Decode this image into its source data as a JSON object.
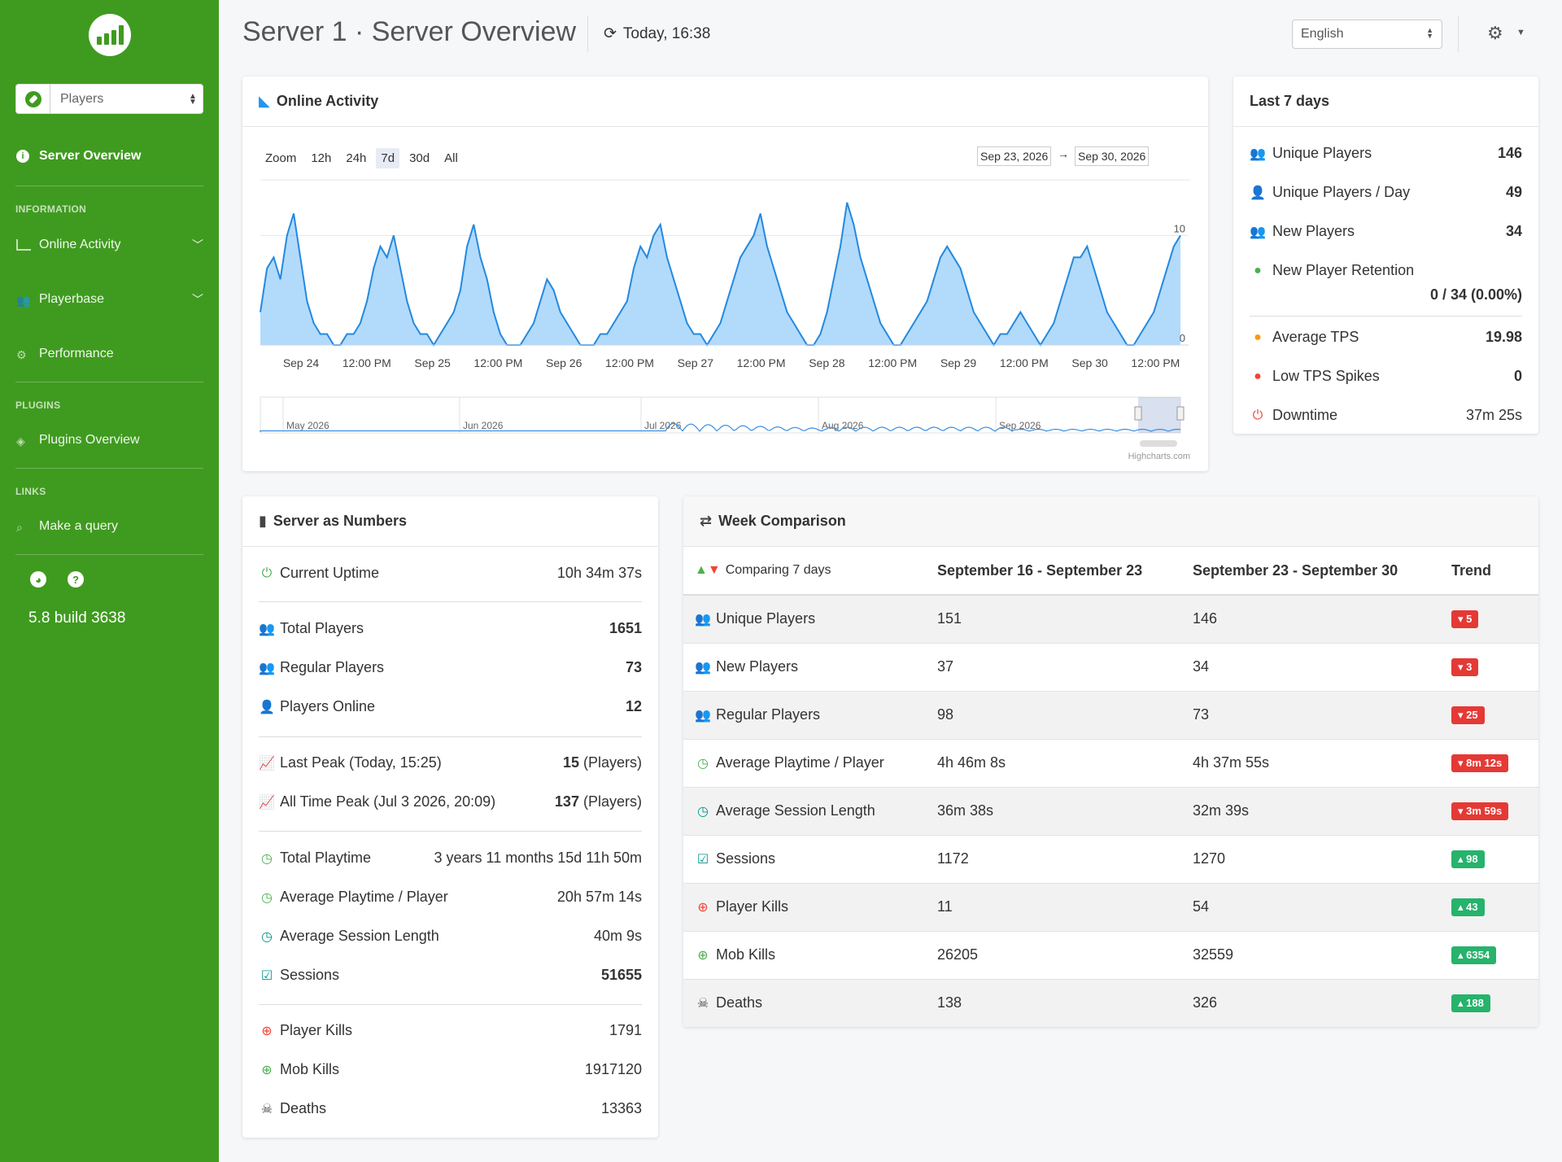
{
  "sidebar": {
    "selector": "Players",
    "active_item": "Server Overview",
    "sections": [
      {
        "label": "INFORMATION"
      },
      {
        "label": "PLUGINS"
      },
      {
        "label": "LINKS"
      }
    ],
    "items": {
      "online_activity": "Online Activity",
      "playerbase": "Playerbase",
      "performance": "Performance",
      "plugins_overview": "Plugins Overview",
      "make_query": "Make a query"
    },
    "version": "5.8 build 3638"
  },
  "header": {
    "title": "Server 1 · Server Overview",
    "time": "Today, 16:38",
    "language": "English"
  },
  "online_activity": {
    "title": "Online Activity",
    "zoom_label": "Zoom",
    "zoom_options": [
      "12h",
      "24h",
      "7d",
      "30d",
      "All"
    ],
    "zoom_selected": "7d",
    "range_from": "Sep 23, 2026",
    "range_to": "Sep 30, 2026",
    "range_arrow": "→",
    "credit": "Highcharts.com",
    "navigator_labels": [
      "May 2026",
      "Jun 2026",
      "Jul 2026",
      "Aug 2026",
      "Sep 2026"
    ]
  },
  "chart_data": {
    "type": "area",
    "x_ticks": [
      "Sep 24",
      "12:00 PM",
      "Sep 25",
      "12:00 PM",
      "Sep 26",
      "12:00 PM",
      "Sep 27",
      "12:00 PM",
      "Sep 28",
      "12:00 PM",
      "Sep 29",
      "12:00 PM",
      "Sep 30",
      "12:00 PM"
    ],
    "y_ticks": [
      0,
      10
    ],
    "ylim": [
      0,
      15
    ],
    "series": [
      {
        "values": [
          3,
          7,
          8,
          6,
          10,
          12,
          8,
          4,
          2,
          1,
          1,
          0,
          0,
          1,
          1,
          2,
          4,
          7,
          9,
          8,
          10,
          7,
          4,
          2,
          1,
          1,
          0,
          1,
          2,
          3,
          5,
          9,
          11,
          8,
          6,
          3,
          1,
          0,
          0,
          0,
          1,
          2,
          4,
          6,
          5,
          3,
          2,
          1,
          0,
          0,
          0,
          1,
          1,
          2,
          3,
          4,
          7,
          9,
          8,
          10,
          11,
          8,
          6,
          4,
          2,
          1,
          1,
          0,
          1,
          2,
          4,
          6,
          8,
          9,
          10,
          12,
          9,
          7,
          5,
          3,
          2,
          1,
          0,
          0,
          1,
          3,
          6,
          9,
          13,
          11,
          8,
          6,
          4,
          2,
          1,
          0,
          0,
          1,
          2,
          3,
          4,
          6,
          8,
          9,
          8,
          7,
          5,
          3,
          2,
          1,
          0,
          1,
          1,
          2,
          3,
          2,
          1,
          0,
          1,
          2,
          4,
          6,
          8,
          8,
          9,
          7,
          5,
          3,
          2,
          1,
          0,
          0,
          1,
          2,
          3,
          5,
          7,
          9,
          10
        ]
      }
    ]
  },
  "last7": {
    "title": "Last 7 days",
    "rows": [
      {
        "label": "Unique Players",
        "value": "146",
        "icon": "users-icon"
      },
      {
        "label": "Unique Players / Day",
        "value": "49",
        "icon": "user-icon"
      },
      {
        "label": "New Players",
        "value": "34",
        "icon": "users-new-icon"
      },
      {
        "label": "New Player Retention",
        "value": "0 / 34 (0.00%)",
        "icon": "retention-icon"
      },
      {
        "label": "Average TPS",
        "value": "19.98",
        "icon": "tps-icon"
      },
      {
        "label": "Low TPS Spikes",
        "value": "0",
        "icon": "alert-icon"
      },
      {
        "label": "Downtime",
        "value": "37m 25s",
        "icon": "power-icon"
      }
    ]
  },
  "numbers": {
    "title": "Server as Numbers",
    "current_uptime": {
      "label": "Current Uptime",
      "value": "10h 34m 37s"
    },
    "total_players": {
      "label": "Total Players",
      "value": "1651"
    },
    "regular_players": {
      "label": "Regular Players",
      "value": "73"
    },
    "players_online": {
      "label": "Players Online",
      "value": "12"
    },
    "last_peak": {
      "label": "Last Peak (Today, 15:25)",
      "value": "15",
      "unit": "(Players)"
    },
    "all_time_peak": {
      "label": "All Time Peak (Jul 3 2026, 20:09)",
      "value": "137",
      "unit": "(Players)"
    },
    "total_playtime": {
      "label": "Total Playtime",
      "value": "3 years 11 months 15d 11h 50m"
    },
    "avg_playtime": {
      "label": "Average Playtime / Player",
      "value": "20h 57m 14s"
    },
    "avg_session": {
      "label": "Average Session Length",
      "value": "40m 9s"
    },
    "sessions": {
      "label": "Sessions",
      "value": "51655"
    },
    "player_kills": {
      "label": "Player Kills",
      "value": "1791"
    },
    "mob_kills": {
      "label": "Mob Kills",
      "value": "1917120"
    },
    "deaths": {
      "label": "Deaths",
      "value": "13363"
    }
  },
  "week": {
    "title": "Week Comparison",
    "head": {
      "c1": "Comparing 7 days",
      "c2": "September 16 - September 23",
      "c3": "September 23 - September 30",
      "c4": "Trend"
    },
    "rows": [
      {
        "label": "Unique Players",
        "a": "151",
        "b": "146",
        "trend": "5",
        "dir": "down"
      },
      {
        "label": "New Players",
        "a": "37",
        "b": "34",
        "trend": "3",
        "dir": "down"
      },
      {
        "label": "Regular Players",
        "a": "98",
        "b": "73",
        "trend": "25",
        "dir": "down"
      },
      {
        "label": "Average Playtime / Player",
        "a": "4h 46m 8s",
        "b": "4h 37m 55s",
        "trend": "8m 12s",
        "dir": "down"
      },
      {
        "label": "Average Session Length",
        "a": "36m 38s",
        "b": "32m 39s",
        "trend": "3m 59s",
        "dir": "down"
      },
      {
        "label": "Sessions",
        "a": "1172",
        "b": "1270",
        "trend": "98",
        "dir": "up"
      },
      {
        "label": "Player Kills",
        "a": "11",
        "b": "54",
        "trend": "43",
        "dir": "up"
      },
      {
        "label": "Mob Kills",
        "a": "26205",
        "b": "32559",
        "trend": "6354",
        "dir": "up"
      },
      {
        "label": "Deaths",
        "a": "138",
        "b": "326",
        "trend": "188",
        "dir": "up"
      }
    ]
  }
}
